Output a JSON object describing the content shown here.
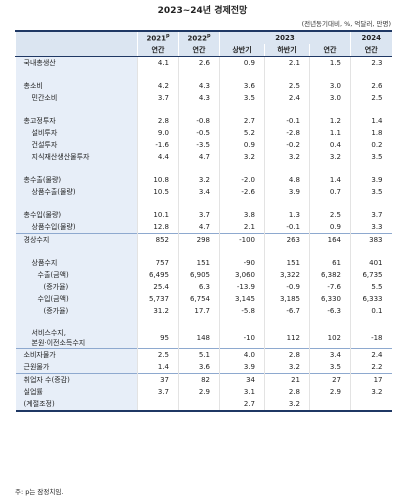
{
  "title": "2023~24년 경제전망",
  "unit_note": "(전년동기대비, %, 억달러, 만명)",
  "header": {
    "years": [
      {
        "text": "2021",
        "sup": "p"
      },
      {
        "text": "2022",
        "sup": "p"
      },
      {
        "text": "2023"
      },
      {
        "text": "2024"
      }
    ],
    "periods": [
      "연간",
      "연간",
      "상반기",
      "하반기",
      "연간",
      "연간"
    ]
  },
  "table": {
    "rows": [
      {
        "label": [
          "국내총생산"
        ],
        "values": [
          "4.1",
          "2.6",
          "0.9",
          "2.1",
          "1.5",
          "2.3"
        ]
      },
      {
        "label": [
          "총소비"
        ],
        "values": [
          "4.2",
          "4.3",
          "3.6",
          "2.5",
          "3.0",
          "2.6"
        ]
      },
      {
        "label": [
          "민간소비"
        ],
        "values": [
          "3.7",
          "4.3",
          "3.5",
          "2.4",
          "3.0",
          "2.5"
        ]
      },
      {
        "label": [
          "총고정투자"
        ],
        "values": [
          "2.8",
          "-0.8",
          "2.7",
          "-0.1",
          "1.2",
          "1.4"
        ]
      },
      {
        "label": [
          "설비투자"
        ],
        "values": [
          "9.0",
          "-0.5",
          "5.2",
          "-2.8",
          "1.1",
          "1.8"
        ]
      },
      {
        "label": [
          "건설투자"
        ],
        "values": [
          "-1.6",
          "-3.5",
          "0.9",
          "-0.2",
          "0.4",
          "0.2"
        ]
      },
      {
        "label": [
          "지식재산생산물투자"
        ],
        "values": [
          "4.4",
          "4.7",
          "3.2",
          "3.2",
          "3.2",
          "3.5"
        ]
      },
      {
        "label": [
          "총수출(물량)"
        ],
        "values": [
          "10.8",
          "3.2",
          "-2.0",
          "4.8",
          "1.4",
          "3.9"
        ]
      },
      {
        "label": [
          "상품수출(물량)"
        ],
        "values": [
          "10.5",
          "3.4",
          "-2.6",
          "3.9",
          "0.7",
          "3.5"
        ]
      },
      {
        "label": [
          "총수입(물량)"
        ],
        "values": [
          "10.1",
          "3.7",
          "3.8",
          "1.3",
          "2.5",
          "3.7"
        ]
      },
      {
        "label": [
          "상품수입(물량)"
        ],
        "values": [
          "12.8",
          "4.7",
          "2.1",
          "-0.1",
          "0.9",
          "3.3"
        ]
      },
      {
        "label": [
          "경상수지"
        ],
        "values": [
          "852",
          "298",
          "-100",
          "263",
          "164",
          "383"
        ]
      },
      {
        "label": [
          "상품수지"
        ],
        "values": [
          "757",
          "151",
          "-90",
          "151",
          "61",
          "401"
        ]
      },
      {
        "label": [
          "수출(금액)"
        ],
        "values": [
          "6,495",
          "6,905",
          "3,060",
          "3,322",
          "6,382",
          "6,735"
        ]
      },
      {
        "label": [
          "(증가율)"
        ],
        "values": [
          "25.4",
          "6.3",
          "-13.9",
          "-0.9",
          "-7.6",
          "5.5"
        ]
      },
      {
        "label": [
          "수입(금액)"
        ],
        "values": [
          "5,737",
          "6,754",
          "3,145",
          "3,185",
          "6,330",
          "6,333"
        ]
      },
      {
        "label": [
          "(증가율)"
        ],
        "values": [
          "31.2",
          "17.7",
          "-5.8",
          "-6.7",
          "-6.3",
          "0.1"
        ]
      },
      {
        "label": [
          "서비스수지,",
          "본원·이전소득수지"
        ],
        "values": [
          "95",
          "148",
          "-10",
          "112",
          "102",
          "-18"
        ]
      },
      {
        "label": [
          "소비자물가"
        ],
        "values": [
          "2.5",
          "5.1",
          "4.0",
          "2.8",
          "3.4",
          "2.4"
        ]
      },
      {
        "label": [
          "근원물가"
        ],
        "values": [
          "1.4",
          "3.6",
          "3.9",
          "3.2",
          "3.5",
          "2.2"
        ]
      },
      {
        "label": [
          "취업자 수(증감)"
        ],
        "values": [
          "37",
          "82",
          "34",
          "21",
          "27",
          "17"
        ]
      },
      {
        "label": [
          "실업률"
        ],
        "values": [
          "3.7",
          "2.9",
          "3.1",
          "2.8",
          "2.9",
          "3.2"
        ]
      },
      {
        "label": [
          "(계절조정)"
        ],
        "values": [
          null,
          null,
          "2.7",
          "3.2",
          null,
          null
        ]
      }
    ]
  },
  "footnote": "주: p는 잠정치임."
}
